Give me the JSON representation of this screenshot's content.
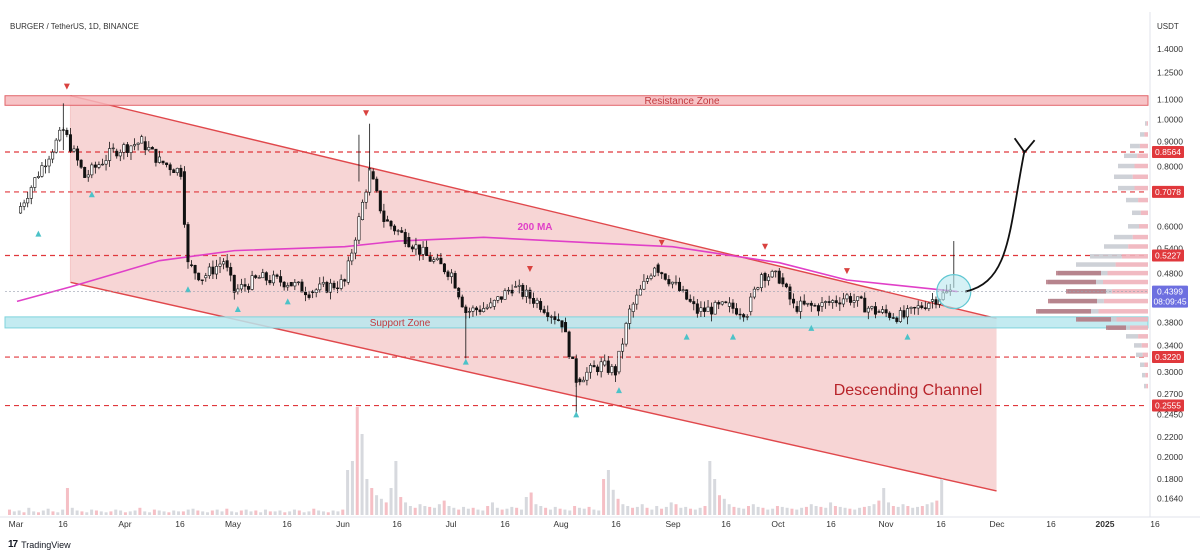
{
  "header": {
    "symbol": "BURGER / TetherUS, 1D, BINANCE",
    "currency": "USDT"
  },
  "branding": {
    "name": "TradingView",
    "icon": "tradingview-logo-icon"
  },
  "colors": {
    "channel_fill": "#f4c7c7",
    "channel_line": "#e0484c",
    "resistance_fill": "#f6b8bc",
    "support_fill": "#b9e8ee",
    "ma_line": "#e040c8",
    "dashed_level": "#e0383c",
    "up_marker": "#4cc2c8",
    "down_marker": "#d9423f",
    "candles": "#111111",
    "arrow": "#111111"
  },
  "chart_data": {
    "type": "candlestick",
    "scale": "log",
    "price_axis": {
      "ticks": [
        "1.4000",
        "1.2500",
        "1.1000",
        "1.0000",
        "0.9000",
        "0.8000",
        "0.6000",
        "0.5400",
        "0.4800",
        "0.3800",
        "0.3400",
        "0.3000",
        "0.2700",
        "0.2450",
        "0.2200",
        "0.2000",
        "0.1800",
        "0.1640"
      ],
      "ylim": [
        0.15,
        1.55
      ]
    },
    "time_axis": {
      "ticks": [
        "Mar",
        "16",
        "Apr",
        "16",
        "May",
        "16",
        "Jun",
        "16",
        "Jul",
        "16",
        "Aug",
        "16",
        "Sep",
        "16",
        "Oct",
        "16",
        "Nov",
        "16",
        "Dec",
        "16",
        "2025",
        "16"
      ]
    },
    "price_labels": [
      {
        "label": "0.8564",
        "value": 0.8564
      },
      {
        "label": "0.7078",
        "value": 0.7078
      },
      {
        "label": "0.5227",
        "value": 0.5227
      },
      {
        "label": "0.3220",
        "value": 0.322
      },
      {
        "label": "0.2555",
        "value": 0.2555
      }
    ],
    "current_price": {
      "label": "0.4399",
      "value": 0.4399,
      "countdown": "08:09:45"
    },
    "zones": [
      {
        "name": "Resistance Zone",
        "low": 1.07,
        "high": 1.12
      },
      {
        "name": "Support Zone",
        "low": 0.37,
        "high": 0.39
      }
    ],
    "dashed_levels": [
      0.8564,
      0.7078,
      0.5227,
      0.322,
      0.2555
    ],
    "annotations": {
      "channel": "Descending Channel",
      "ma": "200 MA",
      "resistance": "Resistance Zone",
      "support": "Support Zone"
    },
    "channel": {
      "upper": [
        {
          "date": "Mar 16",
          "price": 1.12
        },
        {
          "date": "Nov 20",
          "price": 0.405
        }
      ],
      "lower": [
        {
          "date": "Mar 16",
          "price": 0.46
        },
        {
          "date": "Dec 1",
          "price": 0.17
        }
      ]
    },
    "ma_200": [
      {
        "date": "Mar 1",
        "price": 0.42
      },
      {
        "date": "Mar 16",
        "price": 0.45
      },
      {
        "date": "Apr 10",
        "price": 0.51
      },
      {
        "date": "May 1",
        "price": 0.535
      },
      {
        "date": "Jun 1",
        "price": 0.545
      },
      {
        "date": "Jun 16",
        "price": 0.56
      },
      {
        "date": "Jul 10",
        "price": 0.57
      },
      {
        "date": "Aug 10",
        "price": 0.555
      },
      {
        "date": "Sep 1",
        "price": 0.545
      },
      {
        "date": "Oct 1",
        "price": 0.505
      },
      {
        "date": "Oct 20",
        "price": 0.465
      },
      {
        "date": "Nov 20",
        "price": 0.44
      }
    ],
    "candles_close": [
      {
        "date": "Mar 1",
        "price": 0.64
      },
      {
        "date": "Mar 8",
        "price": 0.8
      },
      {
        "date": "Mar 14",
        "price": 0.95
      },
      {
        "date": "Mar 20",
        "price": 0.76
      },
      {
        "date": "Mar 28",
        "price": 0.86
      },
      {
        "date": "Apr 5",
        "price": 0.9
      },
      {
        "date": "Apr 10",
        "price": 0.82
      },
      {
        "date": "Apr 16",
        "price": 0.78
      },
      {
        "date": "Apr 18",
        "price": 0.5
      },
      {
        "date": "Apr 22",
        "price": 0.47
      },
      {
        "date": "Apr 28",
        "price": 0.51
      },
      {
        "date": "May 1",
        "price": 0.44
      },
      {
        "date": "May 8",
        "price": 0.47
      },
      {
        "date": "May 16",
        "price": 0.46
      },
      {
        "date": "May 22",
        "price": 0.44
      },
      {
        "date": "Jun 1",
        "price": 0.46
      },
      {
        "date": "Jun 5",
        "price": 0.62
      },
      {
        "date": "Jun 8",
        "price": 0.78
      },
      {
        "date": "Jun 12",
        "price": 0.62
      },
      {
        "date": "Jun 18",
        "price": 0.57
      },
      {
        "date": "Jun 24",
        "price": 0.52
      },
      {
        "date": "Jul 1",
        "price": 0.48
      },
      {
        "date": "Jul 5",
        "price": 0.4
      },
      {
        "date": "Jul 12",
        "price": 0.41
      },
      {
        "date": "Jul 18",
        "price": 0.45
      },
      {
        "date": "Jul 25",
        "price": 0.42
      },
      {
        "date": "Aug 1",
        "price": 0.38
      },
      {
        "date": "Aug 5",
        "price": 0.29
      },
      {
        "date": "Aug 12",
        "price": 0.31
      },
      {
        "date": "Aug 16",
        "price": 0.3
      },
      {
        "date": "Aug 20",
        "price": 0.4
      },
      {
        "date": "Aug 27",
        "price": 0.5
      },
      {
        "date": "Sep 1",
        "price": 0.46
      },
      {
        "date": "Sep 8",
        "price": 0.4
      },
      {
        "date": "Sep 16",
        "price": 0.41
      },
      {
        "date": "Sep 22",
        "price": 0.4
      },
      {
        "date": "Sep 26",
        "price": 0.48
      },
      {
        "date": "Oct 1",
        "price": 0.47
      },
      {
        "date": "Oct 5",
        "price": 0.41
      },
      {
        "date": "Oct 12",
        "price": 0.41
      },
      {
        "date": "Oct 20",
        "price": 0.43
      },
      {
        "date": "Oct 28",
        "price": 0.4
      },
      {
        "date": "Nov 5",
        "price": 0.39
      },
      {
        "date": "Nov 12",
        "price": 0.42
      },
      {
        "date": "Nov 18",
        "price": 0.44
      }
    ],
    "forecast_arrow": [
      {
        "date": "Nov 20",
        "price": 0.44
      },
      {
        "date": "Dec 10",
        "price": 0.95
      }
    ]
  }
}
